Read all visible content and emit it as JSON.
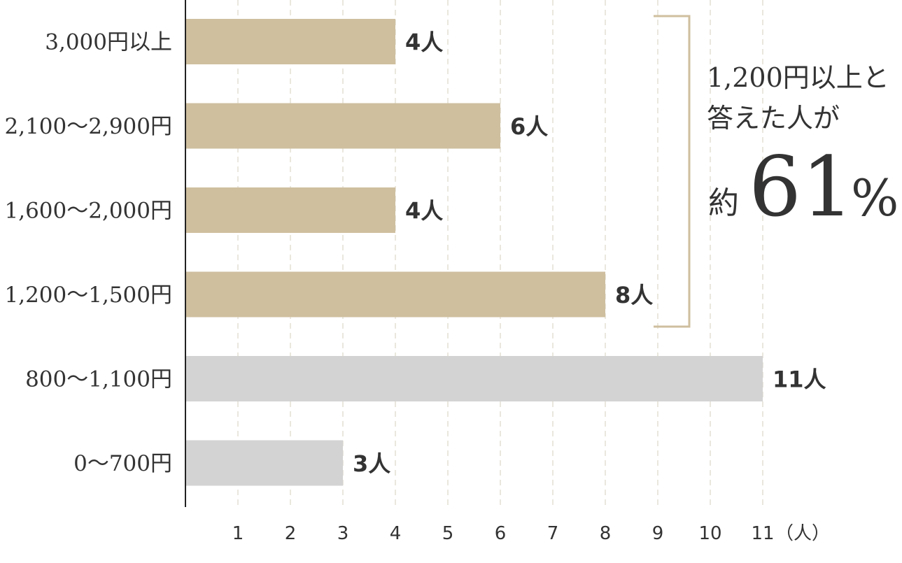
{
  "chart_data": {
    "type": "bar",
    "orientation": "horizontal",
    "categories": [
      "3,000円以上",
      "2,100〜2,900円",
      "1,600〜2,000円",
      "1,200〜1,500円",
      "800〜1,100円",
      "0〜700円"
    ],
    "values": [
      4,
      6,
      4,
      8,
      11,
      3
    ],
    "value_labels": [
      "4人",
      "6人",
      "4人",
      "8人",
      "11人",
      "3人"
    ],
    "x_ticks": [
      "1",
      "2",
      "3",
      "4",
      "5",
      "6",
      "7",
      "8",
      "9",
      "10",
      "11"
    ],
    "x_unit": "（人）",
    "xlim": [
      0,
      11
    ],
    "grid": true,
    "highlighted_count": 4,
    "colors": {
      "highlight": "#cfbf9f",
      "normal": "#d3d3d3",
      "grid": "#e3dfd3",
      "axis": "#222222",
      "bracket": "#cfbf9f"
    },
    "annotation": {
      "line1": "1,200円以上と",
      "line2": "答えた人が",
      "prefix": "約",
      "value": "61",
      "suffix": "%"
    }
  }
}
